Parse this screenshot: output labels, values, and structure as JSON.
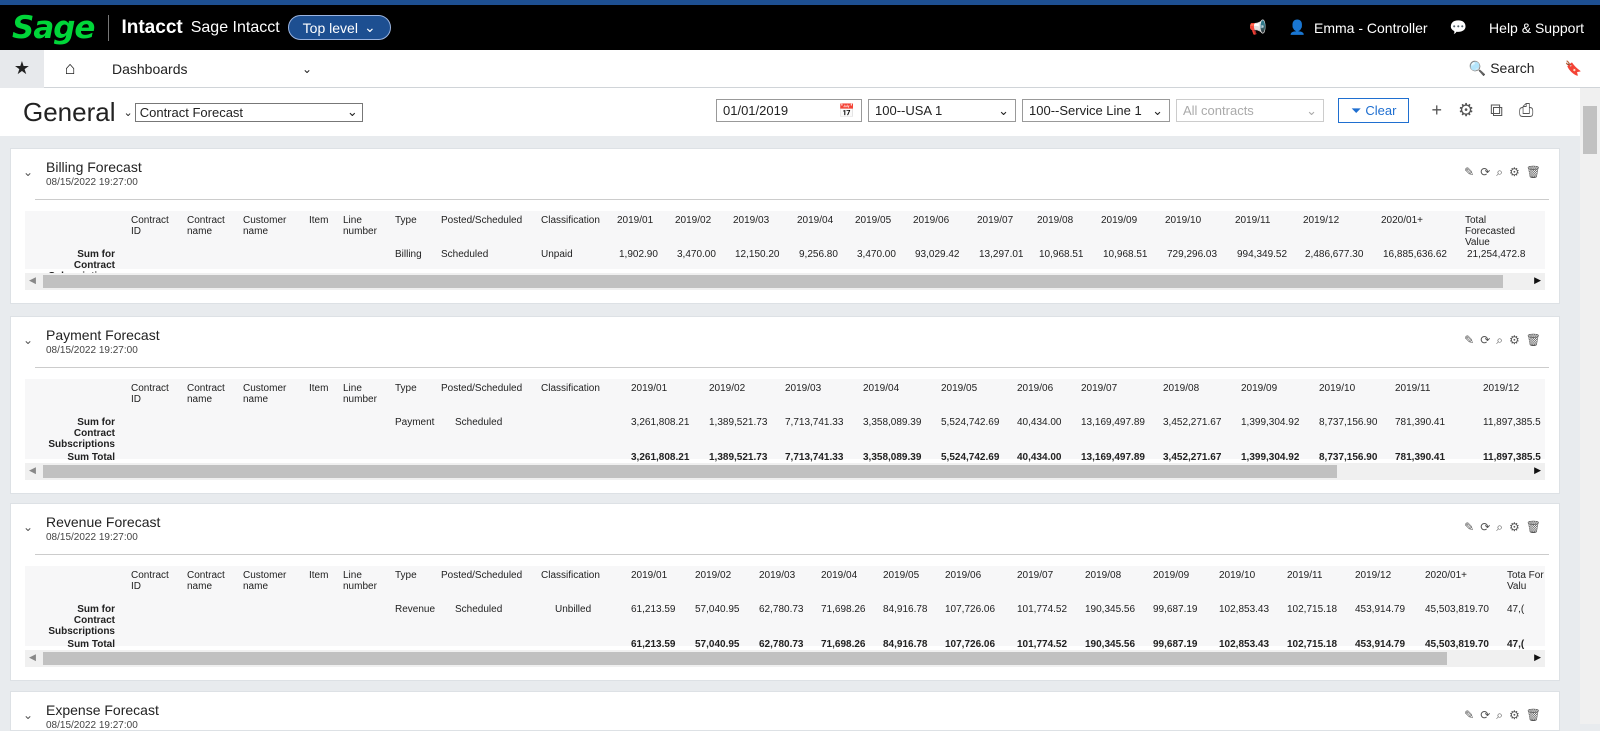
{
  "brand": {
    "logo": "Sage",
    "product": "Intacct",
    "company": "Sage Intacct",
    "level": "Top level"
  },
  "user": {
    "name": "Emma - Controller",
    "help": "Help & Support"
  },
  "nav": {
    "dashboards": "Dashboards",
    "search": "Search"
  },
  "header": {
    "title": "General",
    "dashboard_select": "Contract Forecast",
    "date": "01/01/2019",
    "entity": "100--USA 1",
    "service_line": "100--Service Line 1",
    "contracts_placeholder": "All contracts",
    "clear": "Clear"
  },
  "columns_fixed": [
    "Contract ID",
    "Contract name",
    "Customer name",
    "Item",
    "Line number",
    "Type",
    "Posted/Scheduled",
    "Classification"
  ],
  "row_labels": {
    "sum": "Sum for Contract Subscriptions",
    "total": "Sum Total"
  },
  "panels": [
    {
      "title": "Billing Forecast",
      "date": "08/15/2022 19:27:00",
      "type": "Billing",
      "posted": "Scheduled",
      "classification": "Unpaid",
      "periods": [
        "2019/01",
        "2019/02",
        "2019/03",
        "2019/04",
        "2019/05",
        "2019/06",
        "2019/07",
        "2019/08",
        "2019/09",
        "2019/10",
        "2019/11",
        "2019/12",
        "2020/01+",
        "Total Forecasted Value"
      ],
      "values": [
        "1,902.90",
        "3,470.00",
        "12,150.20",
        "9,256.80",
        "3,470.00",
        "93,029.42",
        "13,297.01",
        "10,968.51",
        "10,968.51",
        "729,296.03",
        "994,349.52",
        "2,486,677.30",
        "16,885,636.62",
        "21,254,472.8"
      ],
      "totals": []
    },
    {
      "title": "Payment Forecast",
      "date": "08/15/2022 19:27:00",
      "type": "Payment",
      "posted": "Scheduled",
      "classification": "",
      "periods": [
        "2019/01",
        "2019/02",
        "2019/03",
        "2019/04",
        "2019/05",
        "2019/06",
        "2019/07",
        "2019/08",
        "2019/09",
        "2019/10",
        "2019/11",
        "2019/12"
      ],
      "values": [
        "3,261,808.21",
        "1,389,521.73",
        "7,713,741.33",
        "3,358,089.39",
        "5,524,742.69",
        "40,434.00",
        "13,169,497.89",
        "3,452,271.67",
        "1,399,304.92",
        "8,737,156.90",
        "781,390.41",
        "11,897,385.5"
      ],
      "totals": [
        "3,261,808.21",
        "1,389,521.73",
        "7,713,741.33",
        "3,358,089.39",
        "5,524,742.69",
        "40,434.00",
        "13,169,497.89",
        "3,452,271.67",
        "1,399,304.92",
        "8,737,156.90",
        "781,390.41",
        "11,897,385.5"
      ]
    },
    {
      "title": "Revenue Forecast",
      "date": "08/15/2022 19:27:00",
      "type": "Revenue",
      "posted": "Scheduled",
      "classification": "Unbilled",
      "periods": [
        "2019/01",
        "2019/02",
        "2019/03",
        "2019/04",
        "2019/05",
        "2019/06",
        "2019/07",
        "2019/08",
        "2019/09",
        "2019/10",
        "2019/11",
        "2019/12",
        "2020/01+",
        "Tota For Valu"
      ],
      "values": [
        "61,213.59",
        "57,040.95",
        "62,780.73",
        "71,698.26",
        "84,916.78",
        "107,726.06",
        "101,774.52",
        "190,345.56",
        "99,687.19",
        "102,853.43",
        "102,715.18",
        "453,914.79",
        "45,503,819.70",
        "47,("
      ],
      "totals": [
        "61,213.59",
        "57,040.95",
        "62,780.73",
        "71,698.26",
        "84,916.78",
        "107,726.06",
        "101,774.52",
        "190,345.56",
        "99,687.19",
        "102,853.43",
        "102,715.18",
        "453,914.79",
        "45,503,819.70",
        "47,("
      ]
    },
    {
      "title": "Expense Forecast",
      "date": "08/15/2022 19:27:00"
    }
  ]
}
